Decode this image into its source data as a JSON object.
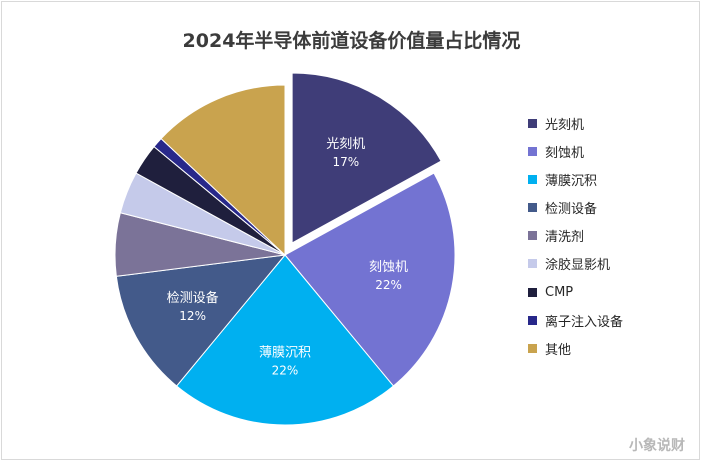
{
  "chart_data": {
    "type": "pie",
    "title": "2024年半导体前道设备价值量占比情况",
    "slices": [
      {
        "label": "光刻机",
        "value": 17,
        "value_label": "17%",
        "color": "#3f3d78",
        "explode": true
      },
      {
        "label": "刻蚀机",
        "value": 22,
        "value_label": "22%",
        "color": "#7373d2"
      },
      {
        "label": "薄膜沉积",
        "value": 22,
        "value_label": "22%",
        "color": "#00b0f0"
      },
      {
        "label": "检测设备",
        "value": 12,
        "value_label": "12%",
        "color": "#435a8a"
      },
      {
        "label": "清洗剂",
        "value": 6,
        "color": "#7b7398"
      },
      {
        "label": "涂胶显影机",
        "value": 4,
        "color": "#c5caea"
      },
      {
        "label": "CMP",
        "value": 3,
        "color": "#1f1f3d"
      },
      {
        "label": "离子注入设备",
        "value": 1,
        "color": "#28288a"
      },
      {
        "label": "其他",
        "value": 13,
        "color": "#c9a34e"
      }
    ],
    "legend_position": "right"
  },
  "watermark": "小象说财"
}
